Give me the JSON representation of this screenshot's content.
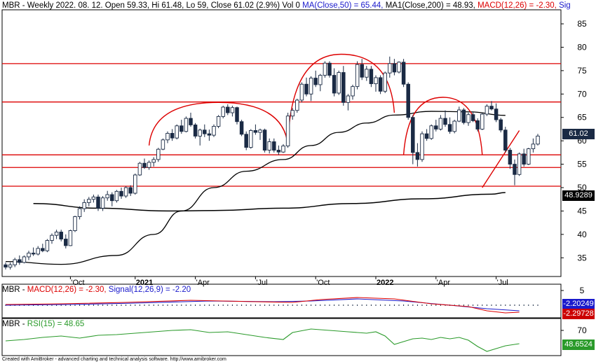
{
  "header": {
    "symbol": "MBR",
    "info": " - Weekly 2022. 08. 12. Open 59.33, Hi 61.48, Lo 59, Close 61.02 (2.9%) Vol 0 ",
    "ma50": "MA(Close,50) = 65.44,",
    "ma200": " MA1(Close,200) = 48.93,",
    "macd": " MACD(12,26) = -2.30,",
    "sig": " Sig"
  },
  "macd_header": {
    "symbol": "MBR",
    "dash": " - ",
    "macd": "MACD(12,26) = -2.30,",
    "signal": " Signal(12,26,9) = -2.20"
  },
  "rsi_header": {
    "symbol": "MBR",
    "dash": " - ",
    "rsi": "RSI(15) = 48.65"
  },
  "footer": "Created with AmiBroker - advanced charting and technical analysis software. http://www.amibroker.com",
  "last_labels": {
    "close": "61.02",
    "ma200": "48.9289",
    "macd_signal": "-2.20249",
    "macd": "-2.29728",
    "rsi": "48.6524"
  },
  "colors": {
    "candle": "#1a2a44",
    "resistance": "#dd0000",
    "ma": "#000000",
    "macd": "#dd0000",
    "signal": "#1a1acc",
    "rsi": "#2a9a2a",
    "close_label_bg": "#1a2a44",
    "macd_label_bg": "#cc0000",
    "signal_label_bg": "#1a1acc",
    "rsi_label_bg": "#2a9a2a",
    "ma_label_bg": "#000000"
  },
  "chart_data": {
    "type": "candlestick",
    "timeframe": "Weekly",
    "y_axis": {
      "range": [
        31,
        88
      ],
      "ticks": [
        35,
        40,
        45,
        50,
        55,
        60,
        65,
        70,
        75,
        80,
        85
      ]
    },
    "x_axis": {
      "labels": [
        "Oct",
        "2021",
        "Apr",
        "Jul",
        "Oct",
        "2022",
        "Apr",
        "Jul"
      ],
      "label_bar_index": [
        14,
        28,
        41,
        54,
        67,
        80,
        93,
        106
      ]
    },
    "candles": [
      [
        33.5,
        34,
        32.5,
        33
      ],
      [
        33,
        34,
        32.5,
        33.5
      ],
      [
        33.5,
        35,
        33,
        34.6
      ],
      [
        34.6,
        35.5,
        33.5,
        34
      ],
      [
        34,
        35.5,
        33.8,
        35.2
      ],
      [
        35.2,
        36.5,
        34.5,
        36
      ],
      [
        36,
        37.2,
        35.4,
        35.8
      ],
      [
        35.8,
        37.5,
        35.5,
        37
      ],
      [
        37,
        38,
        36.2,
        36.5
      ],
      [
        36.5,
        39,
        36.2,
        38.7
      ],
      [
        38.7,
        40.2,
        38,
        39.8
      ],
      [
        39.8,
        41,
        39,
        40.5
      ],
      [
        40.5,
        41,
        38.5,
        39
      ],
      [
        39,
        40,
        37,
        37.6
      ],
      [
        37.6,
        41,
        37.5,
        40.8
      ],
      [
        40.8,
        44,
        40.5,
        43.8
      ],
      [
        43.8,
        46,
        43.2,
        45.5
      ],
      [
        45.5,
        47.5,
        44.8,
        46.8
      ],
      [
        46.8,
        48,
        46,
        47.5
      ],
      [
        47.5,
        48.5,
        46.8,
        48
      ],
      [
        48,
        48.5,
        45,
        45.6
      ],
      [
        45.6,
        48.2,
        45,
        47.8
      ],
      [
        47.8,
        49.3,
        47.2,
        48.5
      ],
      [
        48.5,
        49,
        46,
        47.2
      ],
      [
        47.2,
        49.5,
        46.8,
        49.2
      ],
      [
        49.2,
        50,
        47.6,
        48.2
      ],
      [
        48.2,
        50.3,
        47.8,
        50
      ],
      [
        50,
        50.5,
        48.2,
        48.8
      ],
      [
        48.8,
        53,
        48.5,
        52.7
      ],
      [
        52.7,
        55.5,
        52.5,
        55.2
      ],
      [
        55.2,
        56.2,
        54,
        54.3
      ],
      [
        54.3,
        55.8,
        53.8,
        55.4
      ],
      [
        55.4,
        56.5,
        54.5,
        56
      ],
      [
        56,
        58.5,
        55.5,
        58.2
      ],
      [
        58.2,
        60.5,
        58,
        60.2
      ],
      [
        60.2,
        62,
        59.5,
        61.6
      ],
      [
        61.6,
        62.5,
        60,
        60.6
      ],
      [
        60.6,
        63.5,
        60.3,
        63.2
      ],
      [
        63.2,
        64.5,
        61.5,
        62
      ],
      [
        62,
        65.2,
        61.8,
        64.8
      ],
      [
        64.8,
        66,
        63,
        63.4
      ],
      [
        63.4,
        63.8,
        60.5,
        61
      ],
      [
        61,
        62.6,
        59,
        62.3
      ],
      [
        62.3,
        63.5,
        60.8,
        61.5
      ],
      [
        61.5,
        62.4,
        60,
        61.2
      ],
      [
        61.2,
        63.5,
        60.8,
        63.1
      ],
      [
        63.1,
        65.5,
        62.7,
        65.2
      ],
      [
        65.2,
        67.5,
        64.8,
        67.2
      ],
      [
        67.2,
        67.8,
        65.5,
        66
      ],
      [
        66,
        67.5,
        65.2,
        67.1
      ],
      [
        67.1,
        67.3,
        63.5,
        64.1
      ],
      [
        64.1,
        64.5,
        61,
        61.4
      ],
      [
        61.4,
        62,
        58,
        58.6
      ],
      [
        58.6,
        62.5,
        58.3,
        62.2
      ],
      [
        62.2,
        63.5,
        61.3,
        61.8
      ],
      [
        61.8,
        62.6,
        60.2,
        62.3
      ],
      [
        62.3,
        62.6,
        57.5,
        58
      ],
      [
        58,
        60.5,
        57.3,
        59.8
      ],
      [
        59.8,
        60.5,
        57.5,
        58
      ],
      [
        58,
        59,
        57,
        57.6
      ],
      [
        57.6,
        59.3,
        57.4,
        58.9
      ],
      [
        58.9,
        66,
        58.5,
        65.3
      ],
      [
        65.3,
        67,
        64.5,
        66.5
      ],
      [
        66.5,
        69,
        66,
        68.7
      ],
      [
        68.7,
        72.5,
        68.2,
        72.1
      ],
      [
        72.1,
        73.5,
        69.5,
        70
      ],
      [
        70,
        73.8,
        68.5,
        73.4
      ],
      [
        73.4,
        75,
        71.5,
        72
      ],
      [
        72,
        74.3,
        70.6,
        74
      ],
      [
        74,
        77,
        73.5,
        76.6
      ],
      [
        76.6,
        77,
        73.5,
        74
      ],
      [
        74,
        75.5,
        69.5,
        70.2
      ],
      [
        70.2,
        75,
        69.8,
        74.6
      ],
      [
        74.6,
        76,
        67.5,
        68.2
      ],
      [
        68.2,
        70,
        66.5,
        69.6
      ],
      [
        69.6,
        72,
        68.8,
        71.6
      ],
      [
        71.6,
        77,
        71,
        76.3
      ],
      [
        76.3,
        77.5,
        73,
        73.6
      ],
      [
        73.6,
        76,
        72.8,
        75.3
      ],
      [
        75.3,
        76,
        71.5,
        72.2
      ],
      [
        72.2,
        74,
        70.5,
        73.5
      ],
      [
        73.5,
        74,
        70,
        70.6
      ],
      [
        70.6,
        74.8,
        70.2,
        74.5
      ],
      [
        74.5,
        78,
        73.5,
        76.5
      ],
      [
        76.5,
        77.5,
        74,
        74.7
      ],
      [
        74.7,
        77,
        74.4,
        76.8
      ],
      [
        76.8,
        77.5,
        71.5,
        72.1
      ],
      [
        72.1,
        72.5,
        64.5,
        65
      ],
      [
        65,
        65.5,
        55,
        57.5
      ],
      [
        57.5,
        59.5,
        54.5,
        56
      ],
      [
        56,
        62,
        55.5,
        61.5
      ],
      [
        61.5,
        62.5,
        60,
        60.5
      ],
      [
        60.5,
        63.5,
        60.2,
        63.2
      ],
      [
        63.2,
        64.5,
        62,
        62.5
      ],
      [
        62.5,
        65.5,
        62.2,
        64.8
      ],
      [
        64.8,
        66.5,
        63,
        63.5
      ],
      [
        63.5,
        65,
        61.5,
        62
      ],
      [
        62,
        64.5,
        61.6,
        64.2
      ],
      [
        64.2,
        67.3,
        64,
        66.6
      ],
      [
        66.6,
        67,
        63.5,
        63.9
      ],
      [
        63.9,
        66,
        63.2,
        65.6
      ],
      [
        65.6,
        66.2,
        64,
        64.3
      ],
      [
        64.3,
        64.8,
        62,
        62.5
      ],
      [
        62.5,
        66,
        62.3,
        65.7
      ],
      [
        65.7,
        67.8,
        65.3,
        67.4
      ],
      [
        67.4,
        68.5,
        66.5,
        66.8
      ],
      [
        66.8,
        68,
        64,
        64.5
      ],
      [
        64.5,
        64.9,
        61.8,
        62.3
      ],
      [
        62.3,
        63,
        57.5,
        58
      ],
      [
        58,
        58.5,
        54,
        55
      ],
      [
        55,
        56,
        50.5,
        52.8
      ],
      [
        52.8,
        57.5,
        52.5,
        57.2
      ],
      [
        57.2,
        58.3,
        54.5,
        55
      ],
      [
        55,
        58.5,
        54.8,
        58.3
      ],
      [
        58.3,
        60.5,
        57.5,
        59.3
      ],
      [
        59.3,
        61.48,
        59,
        61.02
      ]
    ],
    "resistance_levels": [
      76.5,
      68.3,
      57,
      54.3,
      50.3
    ],
    "ma50": {
      "name": "MA(Close,50)",
      "last": 65.44
    },
    "ma200": {
      "name": "MA1(Close,200)",
      "last": 48.93
    },
    "macd_panel": {
      "ticks": [
        5
      ],
      "macd_last": -2.3,
      "signal_last": -2.2
    },
    "rsi_panel": {
      "ticks": [
        70
      ],
      "rsi_last": 48.65
    }
  }
}
